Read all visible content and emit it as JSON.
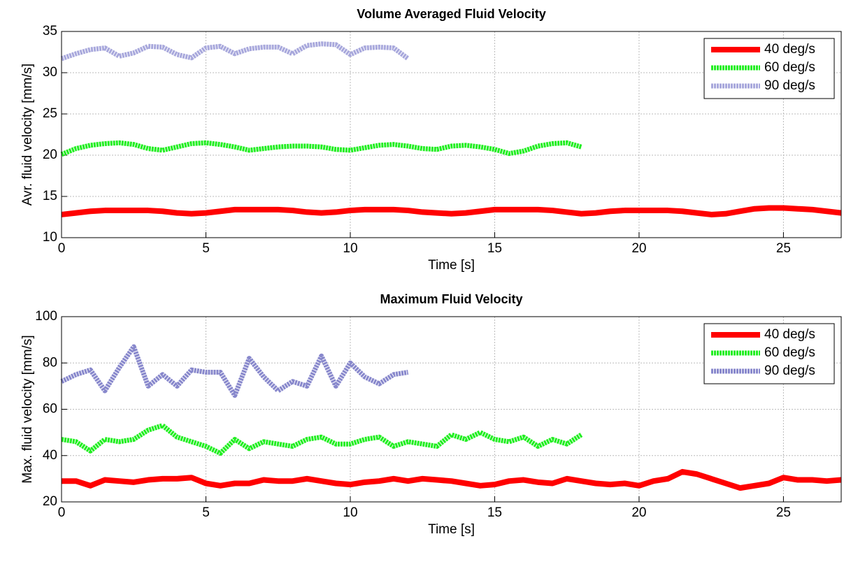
{
  "chart_data": [
    {
      "type": "line",
      "title": "Volume Averaged Fluid Velocity",
      "xlabel": "Time [s]",
      "ylabel": "Avr. fluid velocity [mm/s]",
      "xlim": [
        0,
        27
      ],
      "xticks": [
        0,
        5,
        10,
        15,
        20,
        25
      ],
      "ylim": [
        10,
        35
      ],
      "yticks": [
        10,
        15,
        20,
        25,
        30,
        35
      ],
      "grid": true,
      "legend": "upper right",
      "series": [
        {
          "name": "40 deg/s",
          "color": "#ff0000",
          "dash": "solid",
          "x": [
            0,
            0.5,
            1,
            1.5,
            2,
            2.5,
            3,
            3.5,
            4,
            4.5,
            5,
            5.5,
            6,
            6.5,
            7,
            7.5,
            8,
            8.5,
            9,
            9.5,
            10,
            10.5,
            11,
            11.5,
            12,
            12.5,
            13,
            13.5,
            14,
            14.5,
            15,
            15.5,
            16,
            16.5,
            17,
            17.5,
            18,
            18.5,
            19,
            19.5,
            20,
            20.5,
            21,
            21.5,
            22,
            22.5,
            23,
            23.5,
            24,
            24.5,
            25,
            25.5,
            26,
            26.5,
            27
          ],
          "values": [
            12.8,
            13.0,
            13.2,
            13.3,
            13.3,
            13.3,
            13.3,
            13.2,
            13.0,
            12.9,
            13.0,
            13.2,
            13.4,
            13.4,
            13.4,
            13.4,
            13.3,
            13.1,
            13.0,
            13.1,
            13.3,
            13.4,
            13.4,
            13.4,
            13.3,
            13.1,
            13.0,
            12.9,
            13.0,
            13.2,
            13.4,
            13.4,
            13.4,
            13.4,
            13.3,
            13.1,
            12.9,
            13.0,
            13.2,
            13.3,
            13.3,
            13.3,
            13.3,
            13.2,
            13.0,
            12.8,
            12.9,
            13.2,
            13.5,
            13.6,
            13.6,
            13.5,
            13.4,
            13.2,
            13.0
          ]
        },
        {
          "name": "60 deg/s",
          "color": "#22ee22",
          "dash": "dashed",
          "x": [
            0,
            0.5,
            1,
            1.5,
            2,
            2.5,
            3,
            3.5,
            4,
            4.5,
            5,
            5.5,
            6,
            6.5,
            7,
            7.5,
            8,
            8.5,
            9,
            9.5,
            10,
            10.5,
            11,
            11.5,
            12,
            12.5,
            13,
            13.5,
            14,
            14.5,
            15,
            15.5,
            16,
            16.5,
            17,
            17.5,
            18
          ],
          "values": [
            20.1,
            20.8,
            21.2,
            21.4,
            21.5,
            21.3,
            20.8,
            20.6,
            21.0,
            21.4,
            21.5,
            21.3,
            21.0,
            20.6,
            20.8,
            21.0,
            21.1,
            21.1,
            21.0,
            20.7,
            20.6,
            20.9,
            21.2,
            21.3,
            21.1,
            20.8,
            20.7,
            21.1,
            21.2,
            21.0,
            20.7,
            20.2,
            20.5,
            21.1,
            21.4,
            21.5,
            21.0
          ]
        },
        {
          "name": "90 deg/s",
          "color": "#a8a8dc",
          "dash": "dashed",
          "x": [
            0,
            0.5,
            1,
            1.5,
            2,
            2.5,
            3,
            3.5,
            4,
            4.5,
            5,
            5.5,
            6,
            6.5,
            7,
            7.5,
            8,
            8.5,
            9,
            9.5,
            10,
            10.5,
            11,
            11.5,
            12
          ],
          "values": [
            31.7,
            32.3,
            32.8,
            33.0,
            32.0,
            32.4,
            33.2,
            33.1,
            32.2,
            31.8,
            33.0,
            33.2,
            32.3,
            32.9,
            33.1,
            33.1,
            32.3,
            33.3,
            33.5,
            33.4,
            32.2,
            33.0,
            33.1,
            33.0,
            31.7
          ]
        }
      ]
    },
    {
      "type": "line",
      "title": "Maximum Fluid Velocity",
      "xlabel": "Time [s]",
      "ylabel": "Max. fluid velocity [mm/s]",
      "xlim": [
        0,
        27
      ],
      "xticks": [
        0,
        5,
        10,
        15,
        20,
        25
      ],
      "ylim": [
        20,
        100
      ],
      "yticks": [
        20,
        40,
        60,
        80,
        100
      ],
      "grid": true,
      "legend": "upper right",
      "series": [
        {
          "name": "40 deg/s",
          "color": "#ff0000",
          "dash": "solid",
          "x": [
            0,
            0.5,
            1,
            1.5,
            2,
            2.5,
            3,
            3.5,
            4,
            4.5,
            5,
            5.5,
            6,
            6.5,
            7,
            7.5,
            8,
            8.5,
            9,
            9.5,
            10,
            10.5,
            11,
            11.5,
            12,
            12.5,
            13,
            13.5,
            14,
            14.5,
            15,
            15.5,
            16,
            16.5,
            17,
            17.5,
            18,
            18.5,
            19,
            19.5,
            20,
            20.5,
            21,
            21.5,
            22,
            22.5,
            23,
            23.5,
            24,
            24.5,
            25,
            25.5,
            26,
            26.5,
            27
          ],
          "values": [
            29,
            29,
            27,
            29.5,
            29,
            28.5,
            29.5,
            30,
            30,
            30.5,
            28,
            27,
            28,
            28,
            29.5,
            29,
            29,
            30,
            29,
            28,
            27.5,
            28.5,
            29,
            30,
            29,
            30,
            29.5,
            29,
            28,
            27,
            27.5,
            29,
            29.5,
            28.5,
            28,
            30,
            29,
            28,
            27.5,
            28,
            27,
            29,
            30,
            33,
            32,
            30,
            28,
            26,
            27,
            28,
            30.5,
            29.5,
            29.5,
            29,
            29.5
          ]
        },
        {
          "name": "60 deg/s",
          "color": "#22ee22",
          "dash": "dashed",
          "x": [
            0,
            0.5,
            1,
            1.5,
            2,
            2.5,
            3,
            3.5,
            4,
            4.5,
            5,
            5.5,
            6,
            6.5,
            7,
            7.5,
            8,
            8.5,
            9,
            9.5,
            10,
            10.5,
            11,
            11.5,
            12,
            12.5,
            13,
            13.5,
            14,
            14.5,
            15,
            15.5,
            16,
            16.5,
            17,
            17.5,
            18
          ],
          "values": [
            47,
            46,
            42,
            47,
            46,
            47,
            51,
            53,
            48,
            46,
            44,
            41,
            47,
            43,
            46,
            45,
            44,
            47,
            48,
            45,
            45,
            47,
            48,
            44,
            46,
            45,
            44,
            49,
            47,
            50,
            47,
            46,
            48,
            44,
            47,
            45,
            49
          ]
        },
        {
          "name": "90 deg/s",
          "color": "#8888cc",
          "dash": "dashed",
          "x": [
            0,
            0.5,
            1,
            1.5,
            2,
            2.5,
            3,
            3.5,
            4,
            4.5,
            5,
            5.5,
            6,
            6.5,
            7,
            7.5,
            8,
            8.5,
            9,
            9.5,
            10,
            10.5,
            11,
            11.5,
            12
          ],
          "values": [
            72,
            75,
            77,
            68,
            78,
            87,
            70,
            75,
            70,
            77,
            76,
            76,
            66,
            82,
            74,
            68,
            72,
            70,
            83,
            70,
            80,
            74,
            71,
            75,
            76
          ]
        }
      ]
    }
  ]
}
